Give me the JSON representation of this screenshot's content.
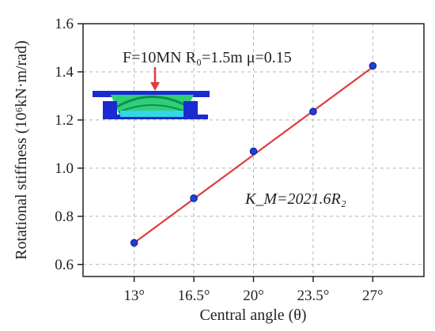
{
  "chart_data": {
    "type": "line",
    "title": "",
    "xlabel": "Central angle (θ)",
    "ylabel": "Rotational stiffness (10⁶kN·m/rad)",
    "x": [
      13,
      16.5,
      20,
      23.5,
      27
    ],
    "x_tick_labels": [
      "13°",
      "16.5°",
      "20°",
      "23.5°",
      "27°"
    ],
    "y_tick_labels": [
      "0.6",
      "0.8",
      "1.0",
      "1.2",
      "1.4",
      "1.6"
    ],
    "xlim": [
      10,
      30
    ],
    "ylim": [
      0.55,
      1.6
    ],
    "grid": true,
    "legend": "none",
    "series": [
      {
        "values": [
          0.69,
          0.875,
          1.07,
          1.235,
          1.425
        ],
        "marker": "circle",
        "color": "#1f3fd6"
      }
    ],
    "fit_line": {
      "x": [
        13,
        27
      ],
      "y": [
        0.69,
        1.42
      ],
      "color": "#e03c3c"
    },
    "annotations": {
      "load_text": "F=10MN    R₀=1.5m  μ=0.15",
      "formula": "K_M=2021.6R₂"
    }
  }
}
